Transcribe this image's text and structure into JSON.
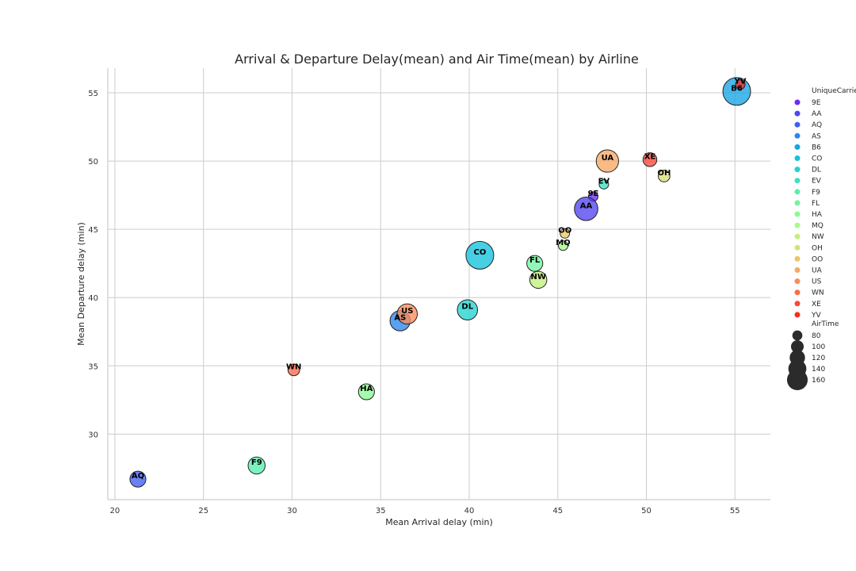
{
  "chart_data": {
    "type": "scatter",
    "title": "Arrival & Departure Delay(mean) and Air Time(mean) by Airline",
    "xlabel": "Mean Arrival delay (min)",
    "ylabel": "Mean Departure delay (min)",
    "xlim": [
      19.6,
      57
    ],
    "ylim": [
      25.2,
      56.8
    ],
    "xticks": [
      20,
      25,
      30,
      35,
      40,
      45,
      50,
      55
    ],
    "yticks": [
      30,
      35,
      40,
      45,
      50,
      55
    ],
    "grid": true,
    "legend_position": "right",
    "hue_legend_title": "UniqueCarrier",
    "size_legend_title": "AirTime",
    "size_legend_values": [
      80,
      100,
      120,
      140,
      160
    ],
    "points": [
      {
        "carrier": "9E",
        "x": 47.0,
        "y": 47.4,
        "airtime": 75,
        "color": "#6c2cf2"
      },
      {
        "carrier": "AA",
        "x": 46.6,
        "y": 46.5,
        "airtime": 140,
        "color": "#5244f0"
      },
      {
        "carrier": "AQ",
        "x": 21.3,
        "y": 26.7,
        "airtime": 105,
        "color": "#3f5ef0"
      },
      {
        "carrier": "AS",
        "x": 36.1,
        "y": 38.3,
        "airtime": 125,
        "color": "#2c86ea"
      },
      {
        "carrier": "B6",
        "x": 55.1,
        "y": 55.1,
        "airtime": 160,
        "color": "#16a4e4"
      },
      {
        "carrier": "CO",
        "x": 40.6,
        "y": 43.1,
        "airtime": 160,
        "color": "#13c1dc"
      },
      {
        "carrier": "DL",
        "x": 39.9,
        "y": 39.1,
        "airtime": 125,
        "color": "#22d3d0"
      },
      {
        "carrier": "EV",
        "x": 47.6,
        "y": 48.3,
        "airtime": 75,
        "color": "#3ae2c0"
      },
      {
        "carrier": "F9",
        "x": 28.0,
        "y": 27.7,
        "airtime": 110,
        "color": "#59eeb0"
      },
      {
        "carrier": "FL",
        "x": 43.7,
        "y": 42.5,
        "airtime": 105,
        "color": "#72f5a0"
      },
      {
        "carrier": "HA",
        "x": 34.2,
        "y": 33.1,
        "airtime": 105,
        "color": "#8bfa94"
      },
      {
        "carrier": "MQ",
        "x": 45.3,
        "y": 43.8,
        "airtime": 75,
        "color": "#a7fa88"
      },
      {
        "carrier": "NW",
        "x": 43.9,
        "y": 41.3,
        "airtime": 110,
        "color": "#c2f07c"
      },
      {
        "carrier": "OH",
        "x": 51.0,
        "y": 48.9,
        "airtime": 85,
        "color": "#d6e077"
      },
      {
        "carrier": "OO",
        "x": 45.4,
        "y": 44.7,
        "airtime": 75,
        "color": "#ecc56a"
      },
      {
        "carrier": "UA",
        "x": 47.8,
        "y": 50.0,
        "airtime": 135,
        "color": "#f7a964"
      },
      {
        "carrier": "US",
        "x": 36.5,
        "y": 38.8,
        "airtime": 125,
        "color": "#fc8c58"
      },
      {
        "carrier": "WN",
        "x": 30.1,
        "y": 34.7,
        "airtime": 85,
        "color": "#fc6a4a"
      },
      {
        "carrier": "XE",
        "x": 50.2,
        "y": 50.1,
        "airtime": 95,
        "color": "#f9483a"
      },
      {
        "carrier": "YV",
        "x": 55.3,
        "y": 55.6,
        "airtime": 75,
        "color": "#f52c22"
      }
    ]
  }
}
